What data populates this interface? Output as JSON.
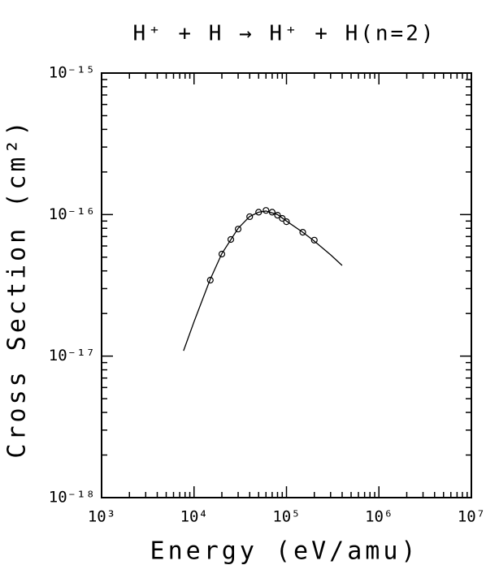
{
  "chart_data": {
    "type": "line",
    "title": "H⁺ + H → H⁺ + H(n=2)",
    "x_label": "Energy (eV/amu)",
    "y_label": "Cross Section (cm²)",
    "xscale": "log",
    "yscale": "log",
    "xlim": [
      1000,
      10000000
    ],
    "ylim": [
      1e-18,
      1e-15
    ],
    "xticks": [
      {
        "value": 1000,
        "label": "10³"
      },
      {
        "value": 10000,
        "label": "10⁴"
      },
      {
        "value": 100000,
        "label": "10⁵"
      },
      {
        "value": 1000000,
        "label": "10⁶"
      },
      {
        "value": 10000000,
        "label": "10⁷"
      }
    ],
    "yticks": [
      {
        "value": 1e-18,
        "label": "10⁻¹⁸"
      },
      {
        "value": 1e-17,
        "label": "10⁻¹⁷"
      },
      {
        "value": 1e-16,
        "label": "10⁻¹⁶"
      },
      {
        "value": 1e-15,
        "label": "10⁻¹⁵"
      }
    ],
    "color": "#000000",
    "line": {
      "x": [
        7700,
        10000,
        15000,
        20000,
        30000,
        40000,
        50000,
        60000,
        80000,
        100000,
        150000,
        200000,
        300000,
        400000
      ],
      "values": [
        1.09e-17,
        1.75e-17,
        3.5e-17,
        5.3e-17,
        8e-17,
        9.7e-17,
        1.04e-16,
        1.06e-16,
        1e-16,
        9e-17,
        7.5e-17,
        6.5e-17,
        5.2e-17,
        4.37e-17
      ]
    },
    "points": {
      "x": [
        15000,
        20000,
        25000,
        30000,
        40000,
        50000,
        60000,
        70000,
        80000,
        90000,
        100000,
        150000,
        200000
      ],
      "values": [
        3.44e-17,
        5.26e-17,
        6.67e-17,
        7.9e-17,
        9.66e-17,
        1.04e-16,
        1.07e-16,
        1.04e-16,
        9.9e-17,
        9.4e-17,
        8.9e-17,
        7.5e-17,
        6.6e-17
      ]
    }
  }
}
